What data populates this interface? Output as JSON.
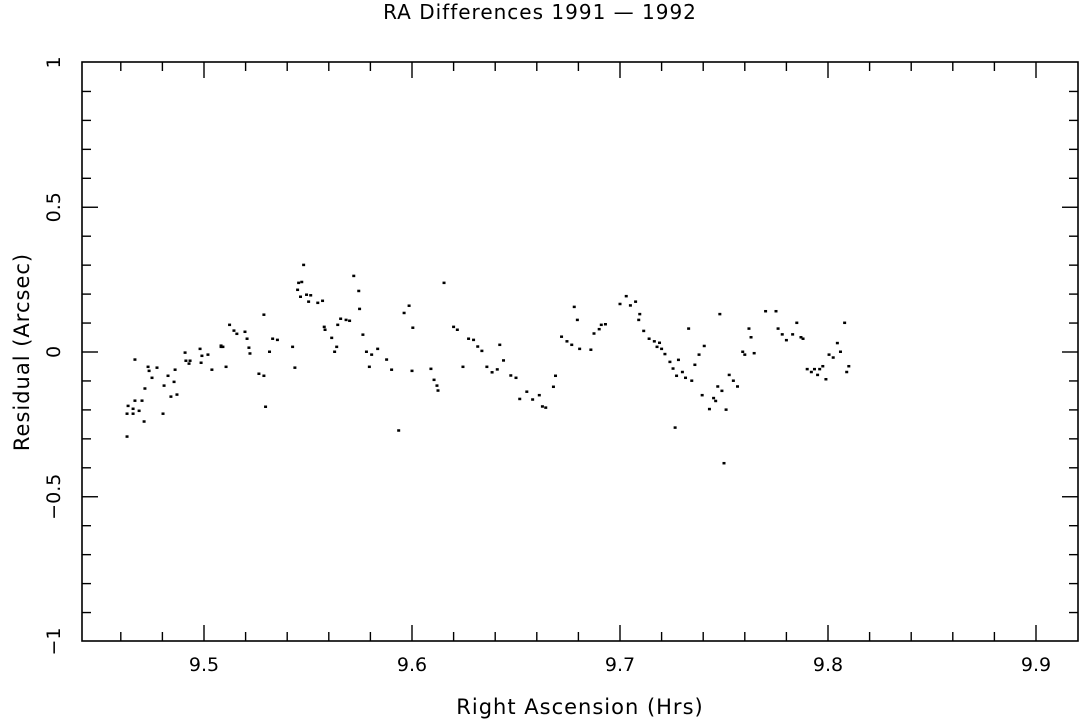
{
  "chart_data": {
    "type": "scatter",
    "title": "RA Differences 1991 — 1992",
    "xlabel": "Right Ascension (Hrs)",
    "ylabel": "Residual (Arcsec)",
    "xlim": [
      9.442,
      9.921
    ],
    "ylim": [
      -1,
      1
    ],
    "xticks": [
      9.5,
      9.6,
      9.7,
      9.8,
      9.9
    ],
    "xtick_labels": [
      "9.5",
      "9.6",
      "9.7",
      "9.8",
      "9.9"
    ],
    "yticks": [
      1,
      0.5,
      0,
      -0.5,
      -1
    ],
    "ytick_labels": [
      "1",
      "0.5",
      "0",
      "−0.5",
      "−1"
    ],
    "grid": false,
    "legend": null,
    "marker_color": "#000000",
    "points": [
      [
        9.463,
        -0.293
      ],
      [
        9.4635,
        -0.187
      ],
      [
        9.463,
        -0.214
      ],
      [
        9.4659,
        -0.214
      ],
      [
        9.4668,
        -0.169
      ],
      [
        9.4659,
        -0.197
      ],
      [
        9.4688,
        -0.204
      ],
      [
        9.4668,
        -0.027
      ],
      [
        9.4702,
        -0.169
      ],
      [
        9.4712,
        -0.241
      ],
      [
        9.4716,
        -0.127
      ],
      [
        9.4731,
        -0.052
      ],
      [
        9.4736,
        -0.066
      ],
      [
        9.475,
        -0.09
      ],
      [
        9.4774,
        -0.055
      ],
      [
        9.4803,
        -0.214
      ],
      [
        9.4808,
        -0.117
      ],
      [
        9.4827,
        -0.083
      ],
      [
        9.4841,
        -0.155
      ],
      [
        9.4856,
        -0.104
      ],
      [
        9.4861,
        -0.062
      ],
      [
        9.487,
        -0.148
      ],
      [
        9.4909,
        -0.003
      ],
      [
        9.4913,
        -0.031
      ],
      [
        9.4928,
        -0.041
      ],
      [
        9.4933,
        -0.031
      ],
      [
        9.4981,
        0.01
      ],
      [
        9.4986,
        -0.038
      ],
      [
        9.499,
        -0.014
      ],
      [
        9.5019,
        -0.01
      ],
      [
        9.5038,
        -0.062
      ],
      [
        9.5082,
        0.021
      ],
      [
        9.5082,
        0.017
      ],
      [
        9.5091,
        0.017
      ],
      [
        9.5106,
        -0.052
      ],
      [
        9.5123,
        0.093
      ],
      [
        9.5144,
        0.073
      ],
      [
        9.5158,
        0.062
      ],
      [
        9.5197,
        0.069
      ],
      [
        9.5207,
        0.045
      ],
      [
        9.5216,
        0.014
      ],
      [
        9.5221,
        -0.006
      ],
      [
        9.5264,
        -0.076
      ],
      [
        9.5288,
        -0.083
      ],
      [
        9.5288,
        0.128
      ],
      [
        9.5315,
        0.0
      ],
      [
        9.5296,
        -0.19
      ],
      [
        9.533,
        0.045
      ],
      [
        9.5353,
        0.041
      ],
      [
        9.5426,
        0.017
      ],
      [
        9.5437,
        -0.055
      ],
      [
        9.545,
        0.214
      ],
      [
        9.5455,
        0.238
      ],
      [
        9.5464,
        0.19
      ],
      [
        9.547,
        0.241
      ],
      [
        9.5479,
        0.3
      ],
      [
        9.5493,
        0.197
      ],
      [
        9.5503,
        0.173
      ],
      [
        9.5513,
        0.195
      ],
      [
        9.5547,
        0.169
      ],
      [
        9.557,
        0.176
      ],
      [
        9.5578,
        0.086
      ],
      [
        9.5582,
        0.076
      ],
      [
        9.5614,
        0.048
      ],
      [
        9.5628,
        0.0
      ],
      [
        9.5638,
        0.017
      ],
      [
        9.5643,
        0.093
      ],
      [
        9.5657,
        0.114
      ],
      [
        9.5683,
        0.11
      ],
      [
        9.57,
        0.107
      ],
      [
        9.572,
        0.262
      ],
      [
        9.5744,
        0.21
      ],
      [
        9.5748,
        0.148
      ],
      [
        9.5764,
        0.059
      ],
      [
        9.5781,
        0.0
      ],
      [
        9.5795,
        -0.052
      ],
      [
        9.5806,
        -0.01
      ],
      [
        9.5835,
        0.01
      ],
      [
        9.5878,
        -0.027
      ],
      [
        9.5902,
        -0.062
      ],
      [
        9.5936,
        -0.272
      ],
      [
        9.5962,
        0.134
      ],
      [
        9.5986,
        0.159
      ],
      [
        9.6004,
        0.083
      ],
      [
        9.6,
        -0.066
      ],
      [
        9.6091,
        -0.059
      ],
      [
        9.6106,
        -0.097
      ],
      [
        9.612,
        -0.117
      ],
      [
        9.6125,
        -0.134
      ],
      [
        9.6154,
        0.238
      ],
      [
        9.62,
        0.086
      ],
      [
        9.6218,
        0.076
      ],
      [
        9.6245,
        -0.052
      ],
      [
        9.6272,
        0.045
      ],
      [
        9.6296,
        0.041
      ],
      [
        9.6316,
        0.018
      ],
      [
        9.6336,
        0.003
      ],
      [
        9.636,
        -0.052
      ],
      [
        9.6385,
        -0.071
      ],
      [
        9.641,
        -0.061
      ],
      [
        9.6422,
        0.024
      ],
      [
        9.644,
        -0.03
      ],
      [
        9.6475,
        -0.082
      ],
      [
        9.65,
        -0.09
      ],
      [
        9.6518,
        -0.163
      ],
      [
        9.6552,
        -0.138
      ],
      [
        9.658,
        -0.165
      ],
      [
        9.6612,
        -0.15
      ],
      [
        9.6627,
        -0.189
      ],
      [
        9.6643,
        -0.193
      ],
      [
        9.668,
        -0.121
      ],
      [
        9.669,
        -0.083
      ],
      [
        9.6719,
        0.052
      ],
      [
        9.6745,
        0.036
      ],
      [
        9.6768,
        0.024
      ],
      [
        9.678,
        0.155
      ],
      [
        9.6795,
        0.11
      ],
      [
        9.6806,
        0.01
      ],
      [
        9.686,
        0.007
      ],
      [
        9.6875,
        0.063
      ],
      [
        9.69,
        0.078
      ],
      [
        9.693,
        0.095
      ],
      [
        9.691,
        0.093
      ],
      [
        9.7,
        0.165
      ],
      [
        9.703,
        0.192
      ],
      [
        9.705,
        0.16
      ],
      [
        9.7075,
        0.173
      ],
      [
        9.709,
        0.11
      ],
      [
        9.7095,
        0.13
      ],
      [
        9.7114,
        0.072
      ],
      [
        9.714,
        0.045
      ],
      [
        9.7165,
        0.036
      ],
      [
        9.7178,
        0.017
      ],
      [
        9.719,
        0.031
      ],
      [
        9.72,
        0.01
      ],
      [
        9.7216,
        -0.008
      ],
      [
        9.724,
        -0.035
      ],
      [
        9.7255,
        -0.058
      ],
      [
        9.7265,
        -0.262
      ],
      [
        9.7272,
        -0.083
      ],
      [
        9.7281,
        -0.028
      ],
      [
        9.73,
        -0.07
      ],
      [
        9.7315,
        -0.09
      ],
      [
        9.733,
        0.08
      ],
      [
        9.7345,
        -0.1
      ],
      [
        9.736,
        -0.045
      ],
      [
        9.738,
        -0.01
      ],
      [
        9.7395,
        -0.15
      ],
      [
        9.7405,
        0.02
      ],
      [
        9.743,
        -0.198
      ],
      [
        9.745,
        -0.16
      ],
      [
        9.746,
        -0.17
      ],
      [
        9.747,
        -0.12
      ],
      [
        9.748,
        0.13
      ],
      [
        9.749,
        -0.135
      ],
      [
        9.75,
        -0.385
      ],
      [
        9.751,
        -0.2
      ],
      [
        9.7525,
        -0.08
      ],
      [
        9.7545,
        -0.1
      ],
      [
        9.7565,
        -0.12
      ],
      [
        9.759,
        0.0
      ],
      [
        9.76,
        -0.01
      ],
      [
        9.762,
        0.08
      ],
      [
        9.763,
        0.05
      ],
      [
        9.7645,
        -0.005
      ],
      [
        9.77,
        0.14
      ],
      [
        9.775,
        0.14
      ],
      [
        9.776,
        0.08
      ],
      [
        9.778,
        0.06
      ],
      [
        9.78,
        0.04
      ],
      [
        9.783,
        0.06
      ],
      [
        9.785,
        0.1
      ],
      [
        9.787,
        0.05
      ],
      [
        9.788,
        0.045
      ],
      [
        9.79,
        -0.06
      ],
      [
        9.792,
        -0.07
      ],
      [
        9.7935,
        -0.06
      ],
      [
        9.795,
        -0.08
      ],
      [
        9.796,
        -0.06
      ],
      [
        9.7975,
        -0.05
      ],
      [
        9.799,
        -0.095
      ],
      [
        9.8005,
        -0.01
      ],
      [
        9.8025,
        -0.02
      ],
      [
        9.8045,
        0.03
      ],
      [
        9.806,
        0.0
      ],
      [
        9.808,
        0.1
      ],
      [
        9.809,
        -0.07
      ],
      [
        9.81,
        -0.05
      ]
    ]
  },
  "title": "RA Differences 1991 — 1992",
  "xlabel": "Right Ascension (Hrs)",
  "ylabel": "Residual (Arcsec)"
}
